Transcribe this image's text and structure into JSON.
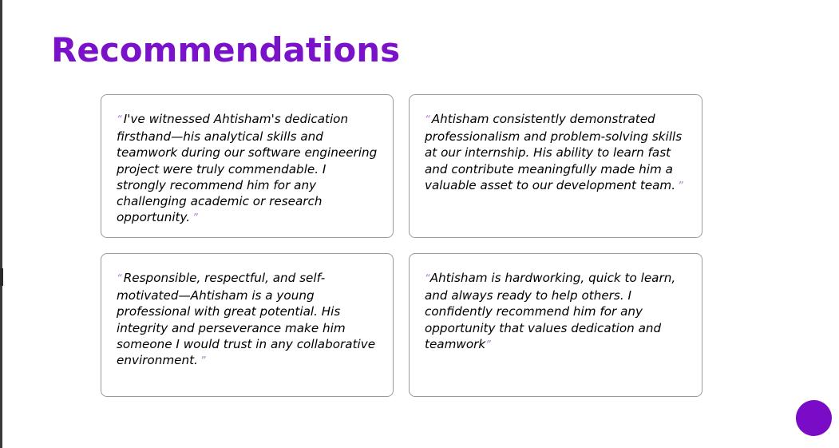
{
  "page": {
    "title": "Recommendations"
  },
  "colors": {
    "title": "#7a12c9",
    "quote_marks": "#b07ad8",
    "fab": "#7a0cc8",
    "card_border": "#9a9a9a"
  },
  "icons": {
    "open_quote": "left-double-quote-icon",
    "close_quote": "right-double-quote-icon"
  },
  "quote_glyphs": {
    "open": "“",
    "close": "”"
  },
  "recommendations": [
    {
      "text": "I've witnessed Ahtisham's dedication firsthand—his analytical skills and teamwork during our software engineering project were truly commendable. I strongly recommend him for any challenging academic or research opportunity."
    },
    {
      "text": "Ahtisham consistently demonstrated professionalism and problem-solving skills at our internship. His ability to learn fast and contribute meaningfully made him a valuable asset to our development team."
    },
    {
      "text": "Responsible, respectful, and self-motivated—Ahtisham is a young professional with great potential. His integrity and perseverance make him someone I would trust in any collaborative environment."
    },
    {
      "text": "Ahtisham is hardworking, quick to learn, and always ready to help others. I confidently recommend him for any opportunity that values dedication and teamwork"
    }
  ]
}
